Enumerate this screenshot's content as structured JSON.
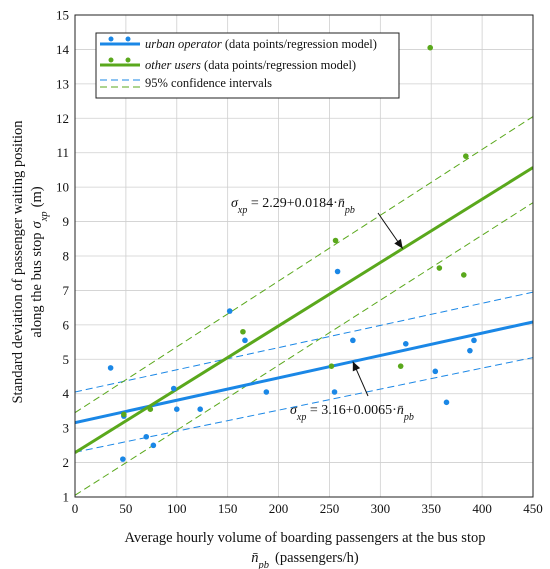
{
  "chart_data": {
    "type": "scatter",
    "title": "",
    "xlabel_line1": "Average hourly volume of boarding passengers at the bus stop",
    "xlabel_symbol": "n̄",
    "xlabel_symbol_sub": "pb",
    "xlabel_unit": "(passengers/h)",
    "ylabel_line1": "Standard deviation of passenger waiting position",
    "ylabel_line2": "along the bus stop",
    "ylabel_symbol": "σ",
    "ylabel_symbol_sub": "xp",
    "ylabel_unit": "(m)",
    "xlim": [
      0,
      450
    ],
    "ylim": [
      1,
      15
    ],
    "xticks": [
      0,
      50,
      100,
      150,
      200,
      250,
      300,
      350,
      400,
      450
    ],
    "yticks": [
      1,
      2,
      3,
      4,
      5,
      6,
      7,
      8,
      9,
      10,
      11,
      12,
      13,
      14,
      15
    ],
    "grid": true,
    "legend_position": "top-left",
    "series": [
      {
        "name_italic": "urban operator",
        "name_rest": " (data points/regression model)",
        "color": "#1a87e6",
        "points": [
          [
            35,
            4.75
          ],
          [
            47,
            2.1
          ],
          [
            48,
            3.35
          ],
          [
            70,
            2.75
          ],
          [
            77,
            2.5
          ],
          [
            97,
            4.15
          ],
          [
            100,
            3.55
          ],
          [
            123,
            3.55
          ],
          [
            152,
            6.4
          ],
          [
            167,
            5.55
          ],
          [
            188,
            4.05
          ],
          [
            255,
            4.05
          ],
          [
            258,
            7.55
          ],
          [
            273,
            5.55
          ],
          [
            325,
            5.45
          ],
          [
            354,
            4.65
          ],
          [
            365,
            3.75
          ],
          [
            388,
            5.25
          ],
          [
            392,
            5.55
          ]
        ],
        "regression": {
          "intercept": 3.16,
          "slope": 0.0065
        },
        "ci_lower": [
          [
            0,
            2.3
          ],
          [
            450,
            5.05
          ]
        ],
        "ci_upper": [
          [
            0,
            4.05
          ],
          [
            450,
            6.95
          ]
        ],
        "equation": {
          "lhs_symbol": "σ",
          "lhs_sub": "xp",
          "rhs_prefix": " = 3.16+0.0065·",
          "rhs_symbol": "n̄",
          "rhs_sub": "pb"
        }
      },
      {
        "name_italic": "other users",
        "name_rest": " (data points/regression model)",
        "color": "#5aa81c",
        "points": [
          [
            48,
            3.4
          ],
          [
            74,
            3.55
          ],
          [
            165,
            5.8
          ],
          [
            252,
            4.8
          ],
          [
            256,
            8.45
          ],
          [
            320,
            4.8
          ],
          [
            349,
            14.05
          ],
          [
            358,
            7.65
          ],
          [
            382,
            7.45
          ],
          [
            384,
            10.9
          ]
        ],
        "regression": {
          "intercept": 2.29,
          "slope": 0.0184
        },
        "ci_lower": [
          [
            0,
            1.05
          ],
          [
            450,
            9.55
          ]
        ],
        "ci_upper": [
          [
            0,
            3.45
          ],
          [
            450,
            12.05
          ]
        ],
        "equation": {
          "lhs_symbol": "σ",
          "lhs_sub": "xp",
          "rhs_prefix": " = 2.29+0.0184·",
          "rhs_symbol": "n̄",
          "rhs_sub": "pb"
        }
      }
    ],
    "ci_label": "95% confidence intervals"
  }
}
